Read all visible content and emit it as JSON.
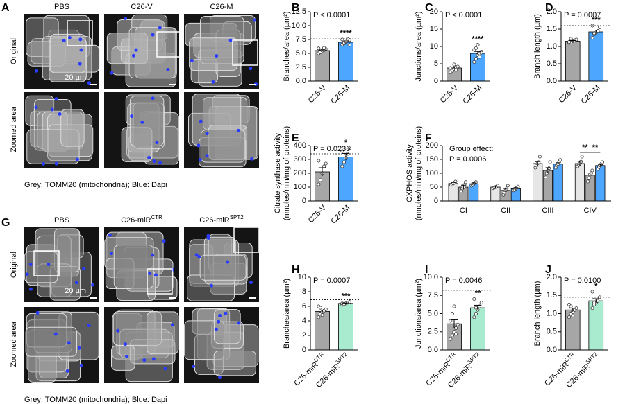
{
  "figure": {
    "panel_letters": [
      "A",
      "B",
      "C",
      "D",
      "E",
      "F",
      "G",
      "H",
      "I",
      "J"
    ],
    "a": {
      "columns": [
        {
          "text": "PBS"
        },
        {
          "text": "C26-V"
        },
        {
          "text": "C26-M"
        }
      ],
      "rows": [
        "Original",
        "Zoomed area"
      ],
      "scale": "20 µm",
      "caption": "Grey: TOMM20 (mitochondria); Blue: Dapi"
    },
    "g": {
      "columns": [
        {
          "text": "PBS"
        },
        {
          "text": "C26-miR",
          "sup": "CTR"
        },
        {
          "text": "C26-miR",
          "sup": "SPT2"
        }
      ],
      "rows": [
        "Original",
        "Zoomed area"
      ],
      "scale": "20 µm",
      "caption": "Grey: TOMM20 (mitochondria); Blue: Dapi"
    }
  },
  "chart_data": [
    {
      "type": "bar",
      "ylabel": "Branches/area (µm²)",
      "categories": [
        "C26-V",
        "C26-M"
      ],
      "values": [
        5.5,
        7.0
      ],
      "errors": [
        0.12,
        0.12
      ],
      "colors": [
        "#a6a6a6",
        "#4da6ff"
      ],
      "points": [
        [
          5.0,
          5.3,
          5.5,
          5.6,
          5.8,
          5.9,
          5.2,
          5.5,
          6.0
        ],
        [
          6.6,
          6.8,
          7.0,
          7.2,
          7.4,
          7.5,
          6.9,
          7.1,
          7.6,
          6.5
        ]
      ],
      "ylim": [
        0,
        12.5
      ],
      "yticks": [
        {
          "value": 0,
          "label": "0.0"
        },
        2.5,
        {
          "value": 5,
          "label": "5.0"
        },
        7.5,
        {
          "value": 10,
          "label": "10.0"
        },
        12.5
      ],
      "reference_line": 7.6,
      "p_value": "P < 0.0001",
      "significance": "****"
    },
    {
      "type": "bar",
      "ylabel": "Junctions/area (µm²)",
      "categories": [
        "C26-V",
        "C26-M"
      ],
      "values": [
        3.8,
        8.0
      ],
      "errors": [
        0.3,
        0.55
      ],
      "colors": [
        "#a6a6a6",
        "#4da6ff"
      ],
      "points": [
        [
          2.5,
          3.0,
          3.5,
          4.0,
          4.2,
          3.8,
          4.5,
          4.8,
          3.2
        ],
        [
          5.5,
          6.5,
          7.5,
          8.0,
          8.5,
          9.0,
          9.5,
          10.5,
          7.0,
          8.2
        ]
      ],
      "ylim": [
        0,
        20
      ],
      "yticks": [
        0,
        5,
        10,
        15,
        20
      ],
      "reference_line": 7.5,
      "p_value": "P < 0.0001",
      "significance": "****"
    },
    {
      "type": "bar",
      "ylabel": "Branch length (µm)",
      "categories": [
        "C26-V",
        "C26-M"
      ],
      "values": [
        1.15,
        1.42
      ],
      "errors": [
        0.02,
        0.05
      ],
      "colors": [
        "#a6a6a6",
        "#4da6ff"
      ],
      "points": [
        [
          1.1,
          1.12,
          1.15,
          1.18,
          1.2,
          1.13,
          1.22
        ],
        [
          1.25,
          1.35,
          1.4,
          1.45,
          1.55,
          1.6,
          1.38
        ]
      ],
      "ylim": [
        0,
        2
      ],
      "yticks": [
        {
          "value": 0,
          "label": "0.0"
        },
        0.5,
        {
          "value": 1,
          "label": "1.0"
        },
        1.5,
        {
          "value": 2,
          "label": "2.0"
        }
      ],
      "reference_line": 1.6,
      "p_value": "P = 0.0007",
      "significance": "***"
    },
    {
      "type": "bar",
      "ylabel": [
        "Citrate synthase activity",
        "(nmoles/min/mg of proteins)"
      ],
      "categories": [
        "C26-V",
        "C26-M"
      ],
      "values": [
        210,
        318
      ],
      "errors": [
        30,
        25
      ],
      "colors": [
        "#a6a6a6",
        "#4da6ff"
      ],
      "points": [
        [
          120,
          150,
          200,
          250,
          270,
          290
        ],
        [
          250,
          280,
          310,
          340,
          380,
          360
        ]
      ],
      "ylim": [
        0,
        400
      ],
      "yticks": [
        0,
        100,
        200,
        300,
        400
      ],
      "reference_line": 340,
      "p_value": "P = 0.0236",
      "significance": "*"
    },
    {
      "type": "grouped_bar",
      "ylabel": [
        "OXPHOS activity",
        "(nmoles/min/mg of proteins)"
      ],
      "categories": [
        "CI",
        "CII",
        "CIII",
        "CIV"
      ],
      "series": [
        {
          "color": "#e6e6e6",
          "values": [
            63,
            50,
            135,
            135
          ],
          "errors": [
            4,
            3,
            7,
            8
          ],
          "points": [
            [
              58,
              60,
              63,
              66,
              70
            ],
            [
              46,
              48,
              50,
              52,
              55
            ],
            [
              120,
              128,
              135,
              140,
              160
            ],
            [
              125,
              130,
              135,
              142,
              160
            ]
          ]
        },
        {
          "color": "#a6a6a6",
          "values": [
            50,
            38,
            110,
            93
          ],
          "errors": [
            7,
            7,
            10,
            8
          ],
          "points": [
            [
              35,
              45,
              50,
              58,
              68
            ],
            [
              22,
              30,
              38,
              45,
              55
            ],
            [
              85,
              100,
              110,
              118,
              140
            ],
            [
              70,
              82,
              95,
              100,
              110
            ]
          ]
        },
        {
          "color": "#4da6ff",
          "values": [
            62,
            44,
            133,
            128
          ],
          "errors": [
            3,
            4,
            5,
            4
          ],
          "points": [
            [
              55,
              58,
              62,
              65,
              68
            ],
            [
              38,
              40,
              44,
              48,
              52
            ],
            [
              120,
              128,
              133,
              140,
              148
            ],
            [
              115,
              122,
              128,
              134,
              140
            ]
          ]
        }
      ],
      "ylim": [
        0,
        200
      ],
      "yticks": [
        0,
        50,
        100,
        150,
        200
      ],
      "annotations": [
        "Group effect:",
        "P = 0.0006"
      ],
      "significance": [
        "**",
        "**"
      ]
    },
    {
      "type": "bar",
      "ylabel": "Branches/area (µm²)",
      "categories": [
        "C26-miR",
        "C26-miR"
      ],
      "category_superscripts": [
        "CTR",
        "SPT2"
      ],
      "values": [
        5.3,
        6.4
      ],
      "errors": [
        0.18,
        0.05
      ],
      "colors": [
        "#a6a6a6",
        "#a8ebcf"
      ],
      "points": [
        [
          4.5,
          5.0,
          5.2,
          5.4,
          5.6,
          6.0,
          5.8,
          4.8
        ],
        [
          6.2,
          6.3,
          6.4,
          6.5,
          6.6,
          6.4,
          6.3
        ]
      ],
      "ylim": [
        0,
        10
      ],
      "yticks": [
        0,
        2,
        4,
        6,
        8,
        10
      ],
      "reference_line": 6.9,
      "p_value": "P = 0.0007",
      "significance": "***"
    },
    {
      "type": "bar",
      "ylabel": "Junctions/area (µm²)",
      "categories": [
        "C26-miR",
        "C26-miR"
      ],
      "category_superscripts": [
        "CTR",
        "SPT2"
      ],
      "values": [
        3.6,
        5.8
      ],
      "errors": [
        0.55,
        0.35
      ],
      "colors": [
        "#a6a6a6",
        "#a8ebcf"
      ],
      "points": [
        [
          1.5,
          2.0,
          2.5,
          3.0,
          3.5,
          4.0,
          5.0,
          6.0,
          2.2
        ],
        [
          4.5,
          5.0,
          5.5,
          6.0,
          6.5,
          7.0,
          5.8
        ]
      ],
      "ylim": [
        0,
        10
      ],
      "yticks": [
        {
          "value": 0,
          "label": "0.0"
        },
        2.5,
        {
          "value": 5,
          "label": "5.0"
        },
        7.5,
        {
          "value": 10,
          "label": "10.0"
        }
      ],
      "reference_line": 8.2,
      "p_value": "P = 0.0046",
      "significance": "**"
    },
    {
      "type": "bar",
      "ylabel": "Branch length (µm)",
      "categories": [
        "C26-miR",
        "C26-miR"
      ],
      "category_superscripts": [
        "CTR",
        "SPT2"
      ],
      "values": [
        1.1,
        1.35
      ],
      "errors": [
        0.05,
        0.06
      ],
      "colors": [
        "#a6a6a6",
        "#a8ebcf"
      ],
      "points": [
        [
          0.9,
          1.0,
          1.05,
          1.1,
          1.15,
          1.25,
          1.2,
          0.95
        ],
        [
          1.15,
          1.25,
          1.3,
          1.35,
          1.45,
          1.6,
          1.3
        ]
      ],
      "ylim": [
        0,
        2
      ],
      "yticks": [
        {
          "value": 0,
          "label": "0.0"
        },
        0.5,
        {
          "value": 1,
          "label": "1.0"
        },
        1.5,
        {
          "value": 2,
          "label": "2.0"
        }
      ],
      "reference_line": 1.45,
      "p_value": "P = 0.0100",
      "significance": "*"
    }
  ]
}
